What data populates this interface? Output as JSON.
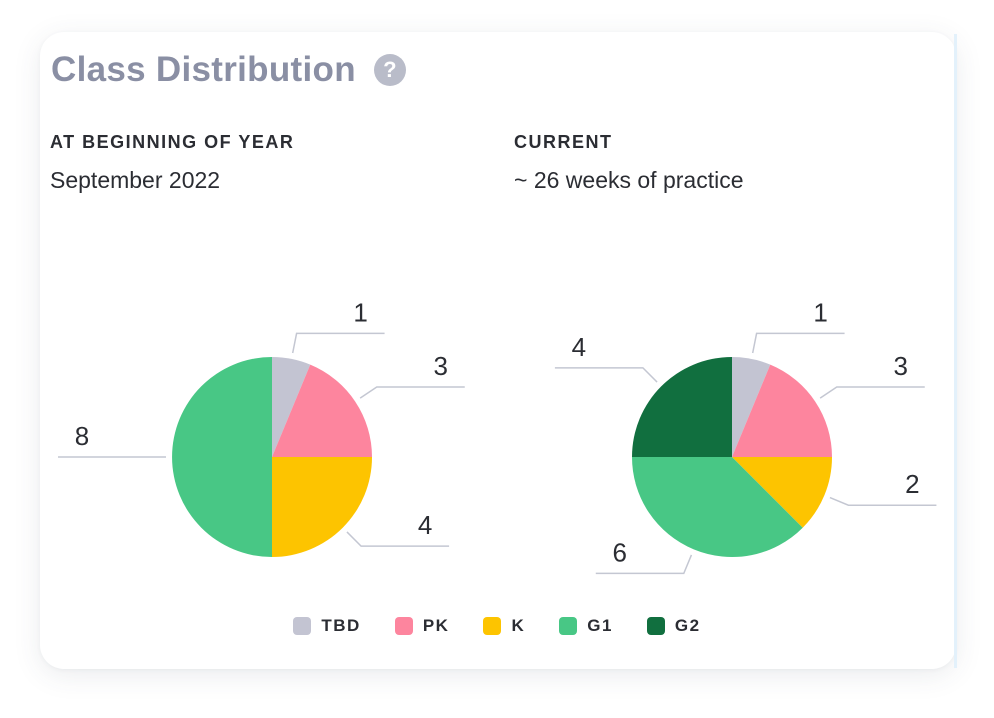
{
  "title": "Class Distribution",
  "help_icon": "question-icon",
  "colors": {
    "TBD": "#c3c4d2",
    "PK": "#fd859e",
    "K": "#fdc400",
    "G1": "#48c785",
    "G2": "#116f3f",
    "leader": "#c4c7d2"
  },
  "sections": [
    {
      "label": "AT BEGINNING OF YEAR",
      "subtitle": "September 2022"
    },
    {
      "label": "CURRENT",
      "subtitle": "~ 26 weeks of practice"
    }
  ],
  "legend": [
    "TBD",
    "PK",
    "K",
    "G1",
    "G2"
  ],
  "chart_data": [
    {
      "type": "pie",
      "title": "AT BEGINNING OF YEAR",
      "categories": [
        "TBD",
        "PK",
        "K",
        "G1"
      ],
      "values": [
        1,
        3,
        4,
        8
      ]
    },
    {
      "type": "pie",
      "title": "CURRENT",
      "categories": [
        "TBD",
        "PK",
        "K",
        "G1",
        "G2"
      ],
      "values": [
        1,
        3,
        2,
        6,
        4
      ]
    }
  ]
}
